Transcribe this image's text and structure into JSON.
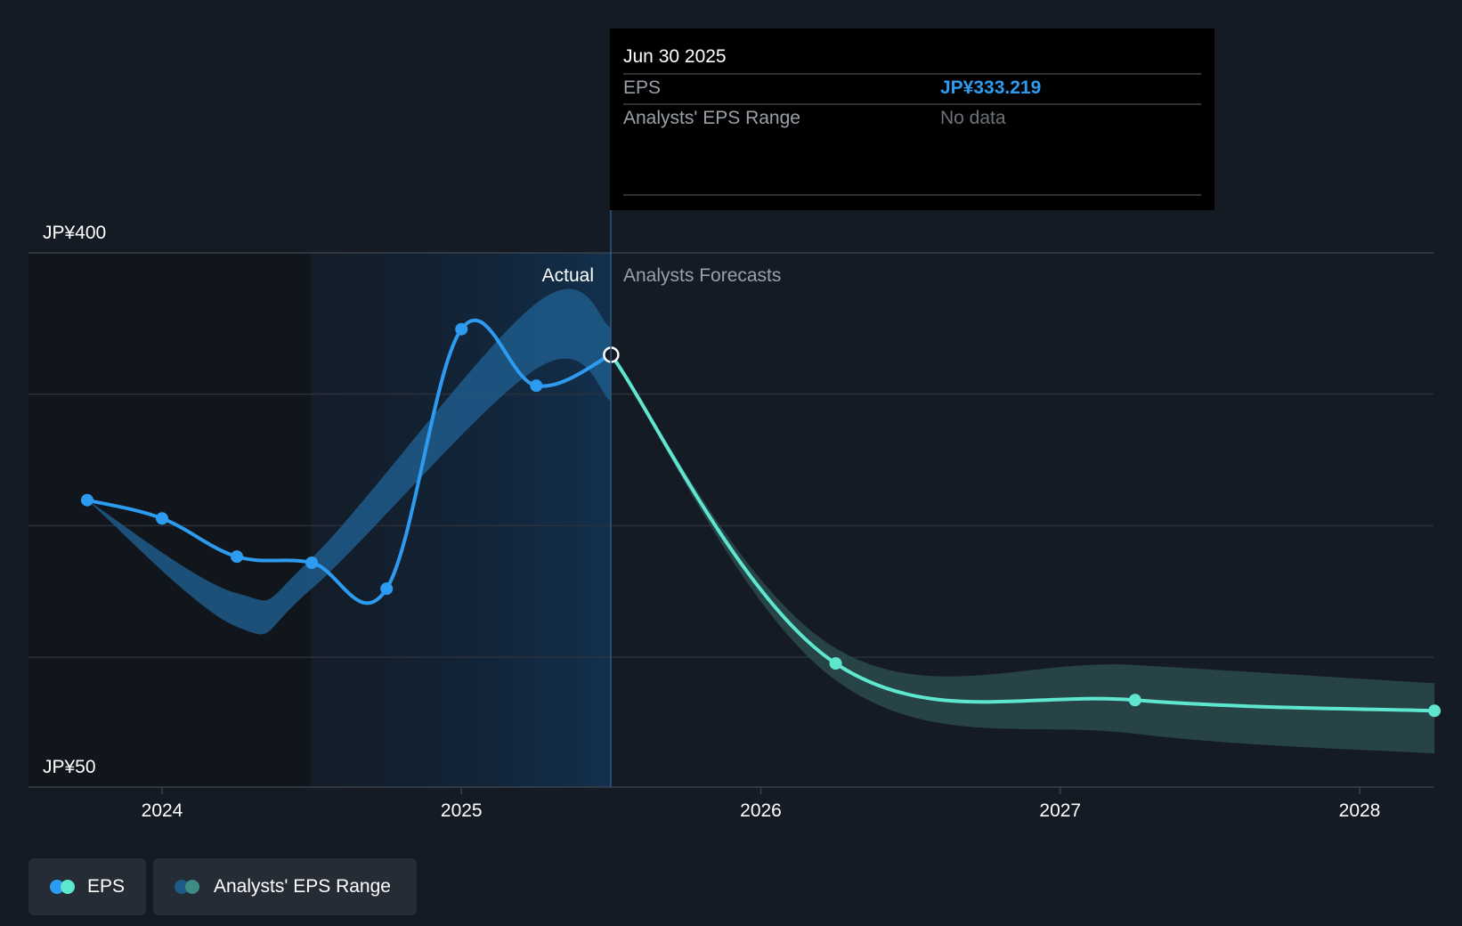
{
  "tooltip": {
    "date": "Jun 30 2025",
    "rows": [
      {
        "label": "EPS",
        "value": "JP¥333.219"
      },
      {
        "label": "Analysts' EPS Range",
        "value": "No data"
      }
    ]
  },
  "zones": {
    "actual_label": "Actual",
    "forecast_label": "Analysts Forecasts"
  },
  "legend": [
    {
      "label": "EPS",
      "colors": [
        "#2d9cf0",
        "#5ee6cf"
      ]
    },
    {
      "label": "Analysts' EPS Range",
      "colors": [
        "#1f5a8a",
        "#3b8c82"
      ]
    }
  ],
  "chart_data": {
    "type": "line",
    "y_tick_labels": [
      "JP¥400",
      "JP¥50"
    ],
    "ylim": [
      50,
      400
    ],
    "x_tick_labels": [
      "2024",
      "2025",
      "2026",
      "2027",
      "2028"
    ],
    "xlim": [
      2023.55,
      2028.25
    ],
    "grid": true,
    "actual_end": 2025.5,
    "colors": {
      "actual": "#2d9cf0",
      "forecast": "#5ee6cf",
      "actual_range": "#1f5a8a",
      "forecast_range": "#2a4a4c"
    },
    "series": [
      {
        "name": "EPS",
        "segment": "actual",
        "x": [
          2023.75,
          2024.0,
          2024.25,
          2024.5,
          2024.75,
          2025.0,
          2025.25,
          2025.5
        ],
        "y": [
          238,
          226,
          201,
          197,
          180,
          350,
          313,
          333.219
        ]
      },
      {
        "name": "EPS",
        "segment": "forecast",
        "x": [
          2025.5,
          2026.25,
          2027.25,
          2028.25
        ],
        "y": [
          333.219,
          131,
          107,
          100
        ]
      }
    ],
    "ranges": [
      {
        "name": "Analysts' EPS Range",
        "segment": "actual",
        "x": [
          2023.75,
          2024.25,
          2024.5,
          2025.25,
          2025.5
        ],
        "low": [
          238,
          155,
          180,
          324,
          303
        ],
        "high": [
          238,
          177,
          200,
          367,
          351
        ]
      },
      {
        "name": "Analysts' EPS Range",
        "segment": "forecast",
        "x": [
          2025.5,
          2026.25,
          2027.25,
          2028.25
        ],
        "low": [
          333.219,
          120,
          85,
          72
        ],
        "high": [
          333.219,
          141,
          130,
          118
        ]
      }
    ]
  }
}
